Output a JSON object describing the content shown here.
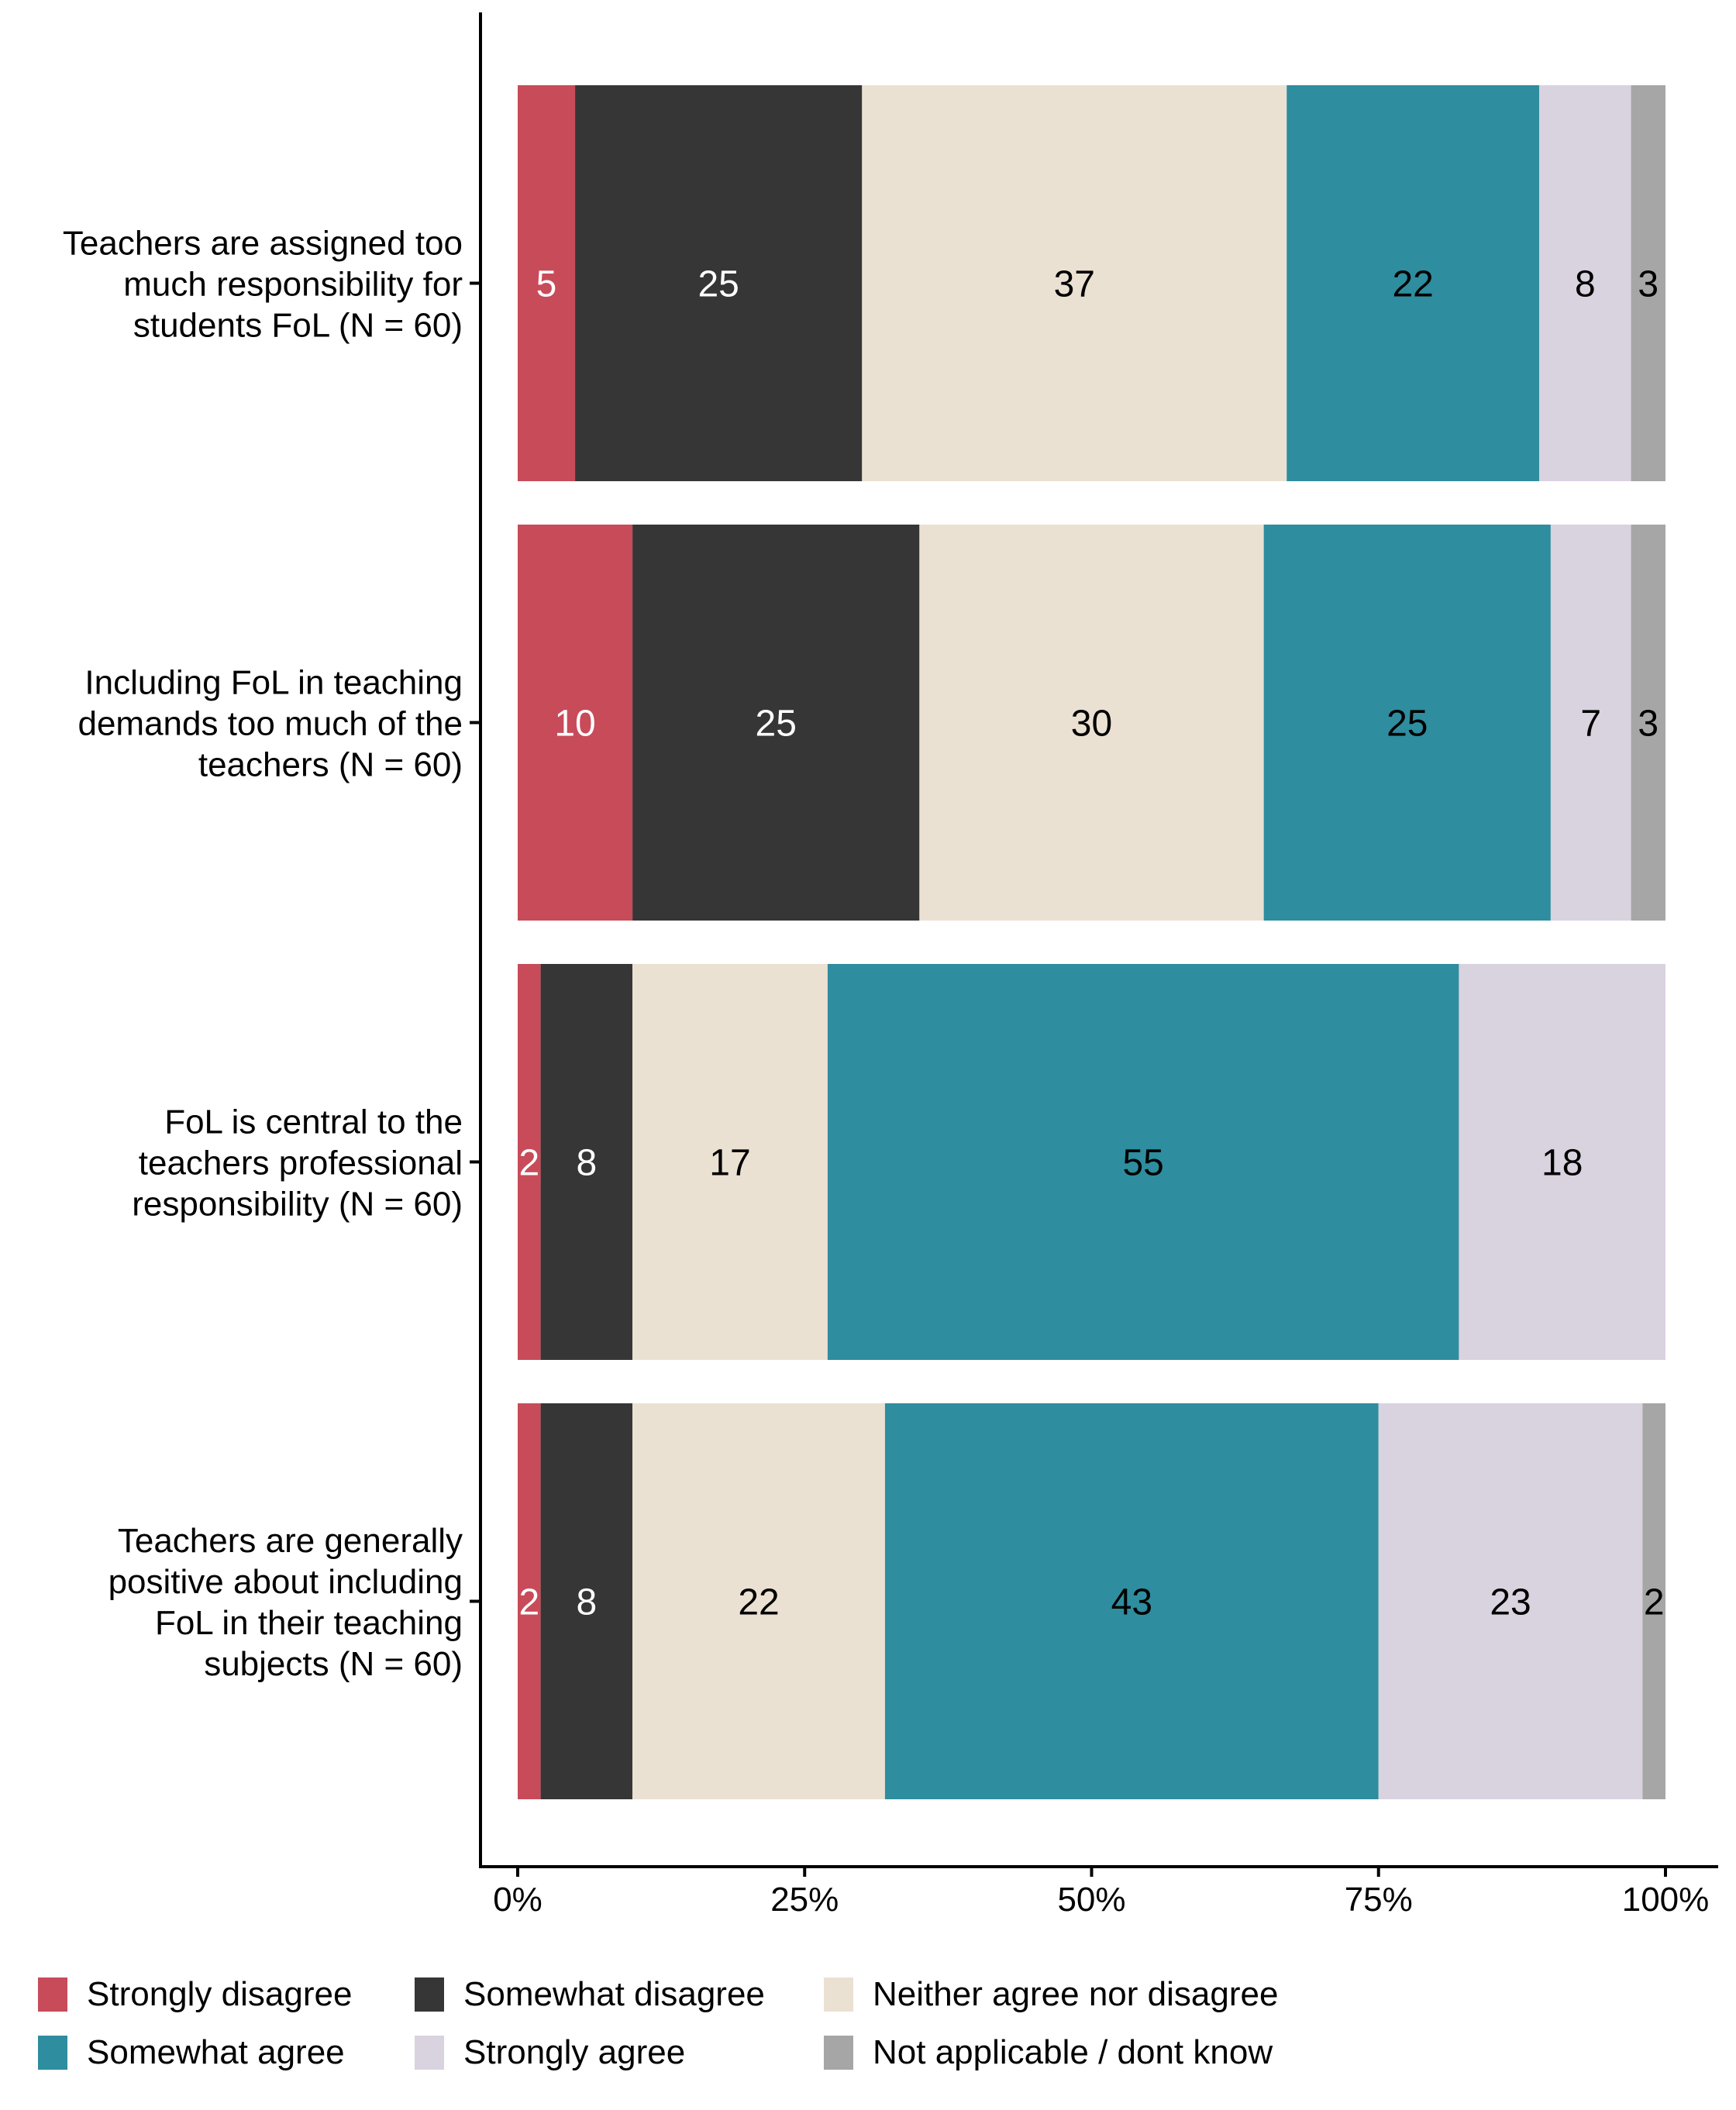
{
  "chart_data": {
    "type": "bar",
    "orientation": "horizontal",
    "stacked": true,
    "title": "",
    "xlabel": "",
    "ylabel": "",
    "xlim": [
      0,
      100
    ],
    "x_ticks": [
      "0%",
      "25%",
      "50%",
      "75%",
      "100%"
    ],
    "x_tick_values": [
      0,
      25,
      50,
      75,
      100
    ],
    "grid": false,
    "legend_position": "bottom",
    "categories": [
      "Teachers are assigned too much responsibility for students FoL (N = 60)",
      "Including FoL in teaching demands too much of the teachers (N = 60)",
      "FoL is central to the teachers professional responsibility (N = 60)",
      "Teachers are generally positive about including FoL in their teaching subjects (N = 60)"
    ],
    "category_lines": [
      [
        "Teachers are assigned too",
        "much responsibility for",
        "students FoL (N = 60)"
      ],
      [
        "Including FoL in teaching",
        "demands too much of the",
        "teachers (N = 60)"
      ],
      [
        "FoL is central to the",
        "teachers professional",
        "responsibility (N = 60)"
      ],
      [
        "Teachers are generally",
        "positive about including",
        "FoL in their teaching",
        "subjects (N = 60)"
      ]
    ],
    "series": [
      {
        "name": "Strongly disagree",
        "color": "#C84B5A",
        "label_color": "#FFFFFF",
        "values": [
          5,
          10,
          2,
          2
        ]
      },
      {
        "name": "Somewhat disagree",
        "color": "#363636",
        "label_color": "#FFFFFF",
        "values": [
          25,
          25,
          8,
          8
        ]
      },
      {
        "name": "Neither agree nor disagree",
        "color": "#EBE1D2",
        "label_color": "#000000",
        "values": [
          37,
          30,
          17,
          22
        ]
      },
      {
        "name": "Somewhat agree",
        "color": "#2E8D9E",
        "label_color": "#000000",
        "values": [
          22,
          25,
          55,
          43
        ]
      },
      {
        "name": "Strongly agree",
        "color": "#D9D2DF",
        "label_color": "#000000",
        "values": [
          8,
          7,
          18,
          23
        ]
      },
      {
        "name": "Not applicable / dont know",
        "color": "#A6A6A6",
        "label_color": "#000000",
        "values": [
          3,
          3,
          0,
          2
        ]
      }
    ]
  },
  "legend": {
    "items": [
      {
        "label": "Strongly disagree",
        "color": "#C84B5A"
      },
      {
        "label": "Somewhat disagree",
        "color": "#363636"
      },
      {
        "label": "Neither agree nor disagree",
        "color": "#EBE1D2"
      },
      {
        "label": "Somewhat agree",
        "color": "#2E8D9E"
      },
      {
        "label": "Strongly agree",
        "color": "#D9D2DF"
      },
      {
        "label": "Not applicable / dont know",
        "color": "#A6A6A6"
      }
    ]
  }
}
